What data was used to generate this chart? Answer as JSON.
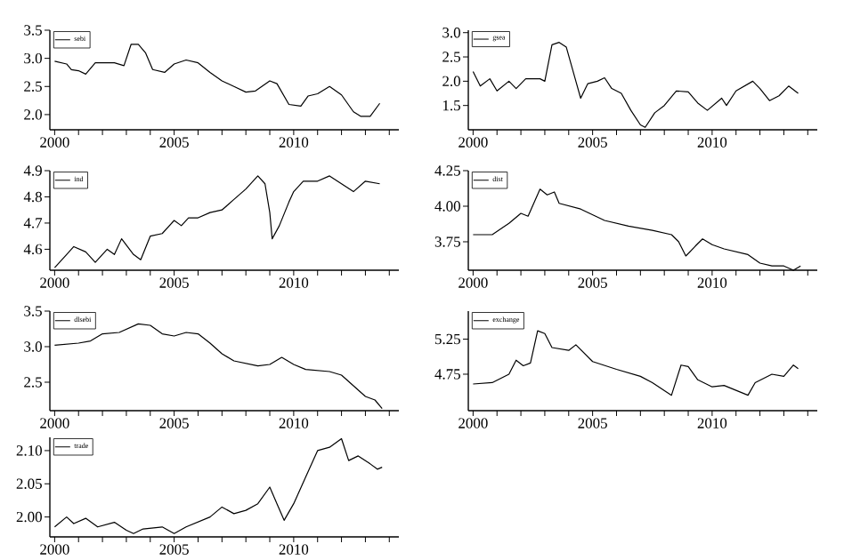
{
  "chart_data": [
    {
      "type": "line",
      "legend": "top left",
      "marker": "none",
      "line_style": "solid",
      "xlim": [
        1999.8,
        2014.4
      ],
      "ylim": [
        1.73,
        3.5
      ],
      "xticks": [
        2000,
        {
          "value": 2001,
          "label": null
        },
        {
          "value": 2002,
          "label": null
        },
        {
          "value": 2003,
          "label": null
        },
        {
          "value": 2004,
          "label": null
        },
        2005,
        {
          "value": 2006,
          "label": null
        },
        {
          "value": 2007,
          "label": null
        },
        {
          "value": 2008,
          "label": null
        },
        {
          "value": 2009,
          "label": null
        },
        2010,
        {
          "value": 2011,
          "label": null
        },
        {
          "value": 2012,
          "label": null
        },
        {
          "value": 2013,
          "label": null
        },
        {
          "value": 2014,
          "label": null
        }
      ],
      "yticks": [
        {
          "value": 2.0,
          "label": "2.0"
        },
        2.5,
        {
          "value": 3.0,
          "label": "3.0"
        },
        3.5
      ],
      "x": [
        2000,
        2000.5,
        2000.7,
        2001,
        2001.3,
        2001.7,
        2002.5,
        2002.9,
        2003.2,
        2003.5,
        2003.8,
        2004.1,
        2004.6,
        2005,
        2005.5,
        2006,
        2006.5,
        2007,
        2007.5,
        2008,
        2008.4,
        2009,
        2009.3,
        2009.8,
        2010.3,
        2010.6,
        2011,
        2011.5,
        2012,
        2012.5,
        2012.8,
        2013.2,
        2013.6
      ],
      "series": [
        {
          "name": "sebi",
          "color": "#000000",
          "values": [
            2.95,
            2.9,
            2.8,
            2.78,
            2.72,
            2.92,
            2.92,
            2.87,
            3.25,
            3.25,
            3.1,
            2.8,
            2.75,
            2.9,
            2.97,
            2.92,
            2.75,
            2.6,
            2.5,
            2.4,
            2.42,
            2.6,
            2.55,
            2.18,
            2.15,
            2.33,
            2.37,
            2.5,
            2.35,
            2.05,
            1.97,
            1.97,
            2.2
          ]
        }
      ]
    },
    {
      "type": "line",
      "legend": "top left",
      "marker": "none",
      "line_style": "solid",
      "xlim": [
        1999.8,
        2014.4
      ],
      "ylim": [
        1.0,
        3.05
      ],
      "xticks": [
        2000,
        {
          "value": 2001,
          "label": null
        },
        {
          "value": 2002,
          "label": null
        },
        {
          "value": 2003,
          "label": null
        },
        {
          "value": 2004,
          "label": null
        },
        2005,
        {
          "value": 2006,
          "label": null
        },
        {
          "value": 2007,
          "label": null
        },
        {
          "value": 2008,
          "label": null
        },
        {
          "value": 2009,
          "label": null
        },
        2010,
        {
          "value": 2011,
          "label": null
        },
        {
          "value": 2012,
          "label": null
        },
        {
          "value": 2013,
          "label": null
        },
        {
          "value": 2014,
          "label": null
        }
      ],
      "yticks": [
        1.5,
        {
          "value": 2.0,
          "label": "2.0"
        },
        2.5,
        {
          "value": 3.0,
          "label": "3.0"
        }
      ],
      "x": [
        2000,
        2000.3,
        2000.7,
        2001,
        2001.5,
        2001.8,
        2002.2,
        2002.8,
        2003,
        2003.3,
        2003.6,
        2003.9,
        2004.3,
        2004.5,
        2004.8,
        2005.2,
        2005.5,
        2005.8,
        2006.2,
        2006.6,
        2007,
        2007.2,
        2007.6,
        2008,
        2008.5,
        2009,
        2009.4,
        2009.8,
        2010.4,
        2010.6,
        2011,
        2011.7,
        2012,
        2012.4,
        2012.8,
        2013.2,
        2013.6
      ],
      "series": [
        {
          "name": "gsea",
          "color": "#000000",
          "values": [
            2.2,
            1.9,
            2.05,
            1.8,
            2.0,
            1.85,
            2.05,
            2.05,
            2.0,
            2.75,
            2.8,
            2.7,
            2.0,
            1.65,
            1.95,
            2.0,
            2.07,
            1.85,
            1.75,
            1.4,
            1.1,
            1.05,
            1.35,
            1.5,
            1.8,
            1.78,
            1.55,
            1.4,
            1.65,
            1.5,
            1.8,
            2.0,
            1.85,
            1.6,
            1.7,
            1.9,
            1.75
          ]
        }
      ]
    },
    {
      "type": "line",
      "legend": "top left",
      "marker": "none",
      "line_style": "solid",
      "xlim": [
        1999.8,
        2014.4
      ],
      "ylim": [
        4.52,
        4.9
      ],
      "xticks": [
        2000,
        {
          "value": 2001,
          "label": null
        },
        {
          "value": 2002,
          "label": null
        },
        {
          "value": 2003,
          "label": null
        },
        {
          "value": 2004,
          "label": null
        },
        2005,
        {
          "value": 2006,
          "label": null
        },
        {
          "value": 2007,
          "label": null
        },
        {
          "value": 2008,
          "label": null
        },
        {
          "value": 2009,
          "label": null
        },
        2010,
        {
          "value": 2011,
          "label": null
        },
        {
          "value": 2012,
          "label": null
        },
        {
          "value": 2013,
          "label": null
        },
        {
          "value": 2014,
          "label": null
        }
      ],
      "yticks": [
        4.6,
        4.7,
        4.8,
        4.9
      ],
      "x": [
        2000,
        2000.5,
        2000.8,
        2001.3,
        2001.7,
        2002.2,
        2002.5,
        2002.8,
        2003.3,
        2003.6,
        2004,
        2004.5,
        2005,
        2005.3,
        2005.6,
        2006,
        2006.5,
        2007,
        2007.5,
        2008,
        2008.5,
        2008.8,
        2009,
        2009.1,
        2009.4,
        2009.8,
        2010,
        2010.4,
        2011,
        2011.5,
        2012,
        2012.5,
        2013,
        2013.6
      ],
      "series": [
        {
          "name": "ind",
          "color": "#000000",
          "values": [
            4.53,
            4.58,
            4.61,
            4.59,
            4.55,
            4.6,
            4.58,
            4.64,
            4.58,
            4.56,
            4.65,
            4.66,
            4.71,
            4.69,
            4.72,
            4.72,
            4.74,
            4.75,
            4.79,
            4.83,
            4.88,
            4.85,
            4.74,
            4.64,
            4.69,
            4.78,
            4.82,
            4.86,
            4.86,
            4.88,
            4.85,
            4.82,
            4.86,
            4.85
          ]
        }
      ]
    },
    {
      "type": "line",
      "legend": "top left",
      "marker": "none",
      "line_style": "solid",
      "xlim": [
        1999.8,
        2014.4
      ],
      "ylim": [
        3.55,
        4.25
      ],
      "xticks": [
        2000,
        {
          "value": 2001,
          "label": null
        },
        {
          "value": 2002,
          "label": null
        },
        {
          "value": 2003,
          "label": null
        },
        {
          "value": 2004,
          "label": null
        },
        2005,
        {
          "value": 2006,
          "label": null
        },
        {
          "value": 2007,
          "label": null
        },
        {
          "value": 2008,
          "label": null
        },
        {
          "value": 2009,
          "label": null
        },
        2010,
        {
          "value": 2011,
          "label": null
        },
        {
          "value": 2012,
          "label": null
        },
        {
          "value": 2013,
          "label": null
        },
        {
          "value": 2014,
          "label": null
        }
      ],
      "yticks": [
        {
          "value": 3.75,
          "label": "3.75"
        },
        {
          "value": 4.0,
          "label": "4.00"
        },
        {
          "value": 4.25,
          "label": "4.25"
        }
      ],
      "x": [
        2000,
        2000.8,
        2001.5,
        2002,
        2002.3,
        2002.8,
        2003.1,
        2003.4,
        2003.6,
        2004.5,
        2005.5,
        2006.5,
        2007.5,
        2008.3,
        2008.6,
        2008.9,
        2009.3,
        2009.6,
        2010,
        2010.5,
        2011.5,
        2012,
        2012.5,
        2013,
        2013.4,
        2013.7
      ],
      "series": [
        {
          "name": "dist",
          "color": "#000000",
          "values": [
            3.8,
            3.8,
            3.88,
            3.95,
            3.93,
            4.12,
            4.08,
            4.1,
            4.02,
            3.98,
            3.9,
            3.86,
            3.83,
            3.8,
            3.75,
            3.65,
            3.72,
            3.77,
            3.73,
            3.7,
            3.66,
            3.6,
            3.58,
            3.58,
            3.55,
            3.58
          ]
        }
      ]
    },
    {
      "type": "line",
      "legend": "top left",
      "marker": "none",
      "line_style": "solid",
      "xlim": [
        1999.8,
        2014.4
      ],
      "ylim": [
        2.1,
        3.5
      ],
      "xticks": [
        2000,
        {
          "value": 2001,
          "label": null
        },
        {
          "value": 2002,
          "label": null
        },
        {
          "value": 2003,
          "label": null
        },
        {
          "value": 2004,
          "label": null
        },
        2005,
        {
          "value": 2006,
          "label": null
        },
        {
          "value": 2007,
          "label": null
        },
        {
          "value": 2008,
          "label": null
        },
        {
          "value": 2009,
          "label": null
        },
        2010,
        {
          "value": 2011,
          "label": null
        },
        {
          "value": 2012,
          "label": null
        },
        {
          "value": 2013,
          "label": null
        },
        {
          "value": 2014,
          "label": null
        }
      ],
      "yticks": [
        2.5,
        {
          "value": 3.0,
          "label": "3.0"
        },
        3.5
      ],
      "x": [
        2000,
        2001,
        2001.5,
        2002,
        2002.7,
        2003.5,
        2004,
        2004.5,
        2005,
        2005.5,
        2006,
        2006.5,
        2007,
        2007.5,
        2008.5,
        2009,
        2009.5,
        2010,
        2010.5,
        2011.5,
        2012,
        2012.5,
        2013,
        2013.4,
        2013.7
      ],
      "series": [
        {
          "name": "dlsebi",
          "color": "#000000",
          "values": [
            3.02,
            3.05,
            3.08,
            3.18,
            3.2,
            3.32,
            3.3,
            3.18,
            3.15,
            3.2,
            3.18,
            3.05,
            2.9,
            2.8,
            2.73,
            2.75,
            2.85,
            2.75,
            2.68,
            2.65,
            2.6,
            2.45,
            2.3,
            2.25,
            2.13
          ]
        }
      ]
    },
    {
      "type": "line",
      "legend": "top left",
      "marker": "none",
      "line_style": "solid",
      "xlim": [
        1999.8,
        2014.4
      ],
      "ylim": [
        4.23,
        5.65
      ],
      "xticks": [
        2000,
        {
          "value": 2001,
          "label": null
        },
        {
          "value": 2002,
          "label": null
        },
        {
          "value": 2003,
          "label": null
        },
        {
          "value": 2004,
          "label": null
        },
        2005,
        {
          "value": 2006,
          "label": null
        },
        {
          "value": 2007,
          "label": null
        },
        {
          "value": 2008,
          "label": null
        },
        {
          "value": 2009,
          "label": null
        },
        2010,
        {
          "value": 2011,
          "label": null
        },
        {
          "value": 2012,
          "label": null
        },
        {
          "value": 2013,
          "label": null
        },
        {
          "value": 2014,
          "label": null
        }
      ],
      "yticks": [
        4.75,
        5.25
      ],
      "x": [
        2000,
        2000.8,
        2001.5,
        2001.8,
        2002.1,
        2002.4,
        2002.7,
        2003,
        2003.3,
        2004,
        2004.3,
        2005,
        2006,
        2007,
        2007.5,
        2008.3,
        2008.7,
        2009,
        2009.4,
        2010,
        2010.5,
        2011.5,
        2011.8,
        2012.5,
        2013,
        2013.4,
        2013.6
      ],
      "series": [
        {
          "name": "exchange",
          "color": "#000000",
          "values": [
            4.61,
            4.63,
            4.75,
            4.95,
            4.87,
            4.91,
            5.37,
            5.33,
            5.13,
            5.09,
            5.17,
            4.93,
            4.82,
            4.72,
            4.63,
            4.45,
            4.88,
            4.86,
            4.67,
            4.57,
            4.59,
            4.45,
            4.63,
            4.75,
            4.72,
            4.88,
            4.83
          ]
        }
      ]
    },
    {
      "type": "line",
      "legend": "top left",
      "marker": "none",
      "line_style": "solid",
      "xlim": [
        1999.8,
        2014.4
      ],
      "ylim": [
        1.97,
        2.12
      ],
      "xticks": [
        2000,
        {
          "value": 2001,
          "label": null
        },
        {
          "value": 2002,
          "label": null
        },
        {
          "value": 2003,
          "label": null
        },
        {
          "value": 2004,
          "label": null
        },
        2005,
        {
          "value": 2006,
          "label": null
        },
        {
          "value": 2007,
          "label": null
        },
        {
          "value": 2008,
          "label": null
        },
        {
          "value": 2009,
          "label": null
        },
        2010,
        {
          "value": 2011,
          "label": null
        },
        {
          "value": 2012,
          "label": null
        },
        {
          "value": 2013,
          "label": null
        },
        {
          "value": 2014,
          "label": null
        }
      ],
      "yticks": [
        {
          "value": 2.0,
          "label": "2.00"
        },
        2.05,
        {
          "value": 2.1,
          "label": "2.10"
        }
      ],
      "x": [
        2000,
        2000.5,
        2000.8,
        2001.3,
        2001.8,
        2002.5,
        2003,
        2003.3,
        2003.7,
        2004.5,
        2005,
        2005.5,
        2006.5,
        2007,
        2007.5,
        2008,
        2008.5,
        2009,
        2009.3,
        2009.6,
        2010,
        2010.5,
        2011,
        2011.5,
        2012,
        2012.3,
        2012.7,
        2013.2,
        2013.5,
        2013.7
      ],
      "series": [
        {
          "name": "trade",
          "color": "#000000",
          "values": [
            1.985,
            2.0,
            1.99,
            1.998,
            1.985,
            1.992,
            1.98,
            1.975,
            1.982,
            1.985,
            1.975,
            1.985,
            2.0,
            2.015,
            2.005,
            2.01,
            2.02,
            2.045,
            2.02,
            1.995,
            2.02,
            2.06,
            2.1,
            2.105,
            2.118,
            2.085,
            2.092,
            2.08,
            2.072,
            2.075
          ]
        }
      ]
    }
  ]
}
